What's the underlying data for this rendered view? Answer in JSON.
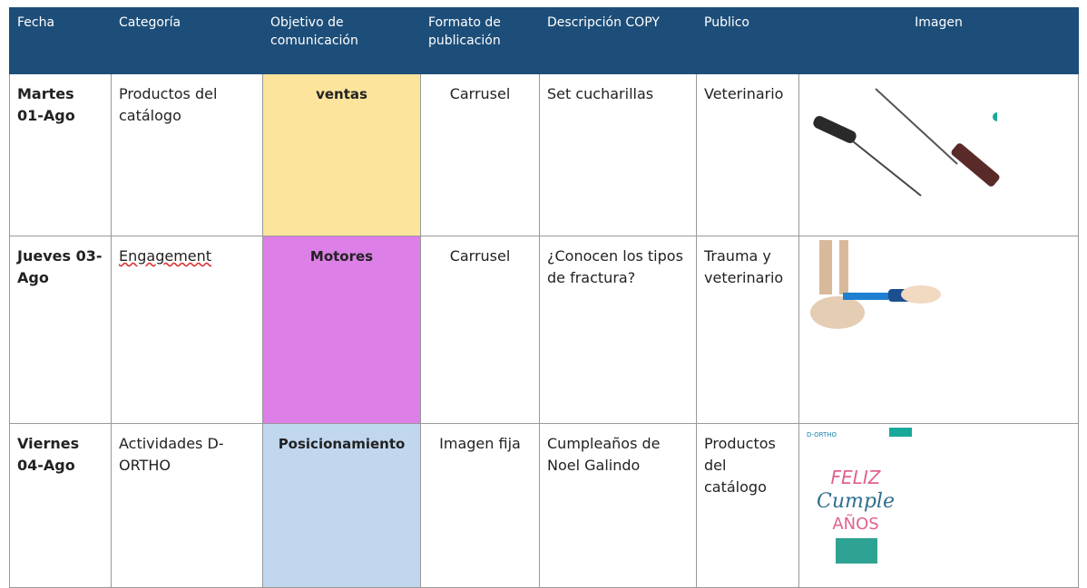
{
  "table": {
    "headers": [
      "Fecha",
      "Categoría",
      "Objetivo de comunicación",
      "Formato de publicación",
      "Descripción COPY",
      "Publico",
      "Imagen"
    ],
    "rows": [
      {
        "fecha": "Martes 01-Ago",
        "categoria": "Productos del catálogo",
        "objetivo": "ventas",
        "formato": "Carrusel",
        "descripcion": "Set cucharillas",
        "publico": "Veterinario"
      },
      {
        "fecha": "Jueves 03-Ago",
        "categoria": "Engagement",
        "objetivo": "Motores",
        "formato": "Carrusel",
        "descripcion": "¿Conocen los tipos de fractura?",
        "publico": "Trauma y veterinario"
      },
      {
        "fecha": "Viernes 04-Ago",
        "categoria": "Actividades D-ORTHO",
        "objetivo": "Posicionamiento",
        "formato": "Imagen fija",
        "descripcion": "Cumpleaños de Noel Galindo",
        "publico": "Productos del catálogo",
        "image_text": [
          "D-ORTHO",
          "FELIZ",
          "Cumple",
          "AÑOS"
        ]
      }
    ]
  }
}
